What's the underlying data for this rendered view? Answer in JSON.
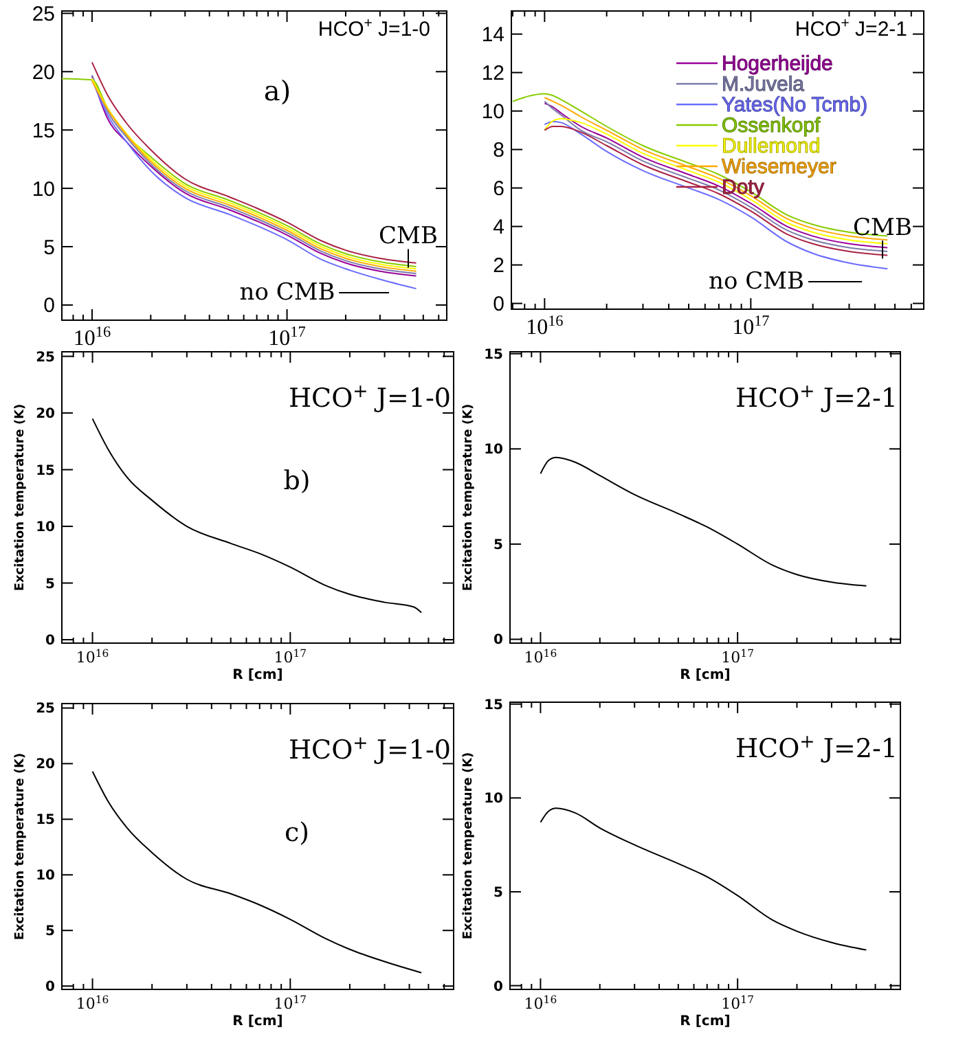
{
  "chart_data": [
    {
      "type": "line",
      "title": "HCO$^{+}$ J=1-0",
      "log": "x",
      "xlim": [
        7000000000000000.0,
        6.6e+17
      ],
      "ylim": [
        -1.3,
        25.2
      ],
      "yticks": [
        0,
        5,
        10,
        15,
        20,
        25
      ],
      "xticks": [
        {
          "value": 8000000000000000.0,
          "label": null
        },
        {
          "value": 9000000000000000.0,
          "label": null
        },
        {
          "value": 1e+16,
          "label": "10$^{16}$"
        },
        {
          "value": 2e+16,
          "label": null
        },
        {
          "value": 3e+16,
          "label": null
        },
        {
          "value": 4e+16,
          "label": null
        },
        {
          "value": 5e+16,
          "label": null
        },
        {
          "value": 6e+16,
          "label": null
        },
        {
          "value": 7e+16,
          "label": null
        },
        {
          "value": 8e+16,
          "label": null
        },
        {
          "value": 9e+16,
          "label": null
        },
        {
          "value": 1e+17,
          "label": "10$^{17}$"
        },
        {
          "value": 2e+17,
          "label": null
        },
        {
          "value": 3e+17,
          "label": null
        },
        {
          "value": 4e+17,
          "label": null
        },
        {
          "value": 5e+17,
          "label": null
        },
        {
          "value": 6e+17,
          "label": null
        }
      ],
      "x": [
        1e+16,
        1.2e+16,
        1.5e+16,
        2e+16,
        3e+16,
        5e+16,
        7e+16,
        1e+17,
        1.5e+17,
        2e+17,
        3e+17,
        4.6e+17
      ],
      "annotations": [
        "a)",
        "CMB",
        "no CMB"
      ],
      "series": [
        {
          "color": "#990099",
          "values": [
            19.6,
            16.0,
            14.0,
            11.9,
            9.6,
            8.2,
            7.2,
            6.0,
            4.4,
            3.6,
            2.9,
            2.5
          ]
        },
        {
          "color": "#7b7bab",
          "values": [
            19.7,
            16.6,
            14.4,
            12.1,
            9.8,
            8.4,
            7.4,
            6.2,
            4.6,
            3.8,
            3.1,
            2.7
          ]
        },
        {
          "color": "#6b6bff",
          "values": [
            19.3,
            16.3,
            14.0,
            11.5,
            9.2,
            7.8,
            6.8,
            5.6,
            3.9,
            3.1,
            2.2,
            1.4
          ]
        },
        {
          "color": "#88cc00",
          "x": [
            7000000000000000.0,
            1e+16,
            1.2e+16,
            1.5e+16,
            2e+16,
            3e+16,
            5e+16,
            7e+16,
            1e+17,
            1.5e+17,
            2e+17,
            3e+17,
            4.6e+17
          ],
          "values": [
            19.4,
            19.3,
            16.9,
            14.6,
            12.7,
            10.4,
            9.0,
            8.0,
            6.8,
            5.2,
            4.4,
            3.7,
            3.3
          ]
        },
        {
          "color": "#ffff00",
          "values": [
            19.4,
            16.9,
            14.7,
            12.5,
            10.2,
            8.8,
            7.8,
            6.6,
            5.0,
            4.2,
            3.5,
            3.1
          ]
        },
        {
          "color": "#ffaa00",
          "values": [
            19.2,
            16.8,
            14.6,
            12.3,
            10.0,
            8.6,
            7.6,
            6.4,
            4.8,
            4.0,
            3.3,
            2.9
          ]
        },
        {
          "color": "#aa2244",
          "values": [
            20.8,
            18.0,
            15.6,
            13.3,
            10.8,
            9.3,
            8.3,
            7.1,
            5.5,
            4.7,
            4.0,
            3.6
          ]
        }
      ]
    },
    {
      "type": "line",
      "title": "HCO$^{+}$ J=2-1",
      "log": "x",
      "legend": "top right",
      "xlim": [
        6900000000000000.0,
        6.9e+17
      ],
      "ylim": [
        -0.3,
        15.2
      ],
      "yticks": [
        0,
        2,
        4,
        6,
        8,
        10,
        12,
        14
      ],
      "xticks": [
        {
          "value": 7000000000000000.0,
          "label": null
        },
        {
          "value": 8000000000000000.0,
          "label": null
        },
        {
          "value": 9000000000000000.0,
          "label": null
        },
        {
          "value": 1e+16,
          "label": "10$^{16}$"
        },
        {
          "value": 2e+16,
          "label": null
        },
        {
          "value": 3e+16,
          "label": null
        },
        {
          "value": 4e+16,
          "label": null
        },
        {
          "value": 5e+16,
          "label": null
        },
        {
          "value": 6e+16,
          "label": null
        },
        {
          "value": 7e+16,
          "label": null
        },
        {
          "value": 8e+16,
          "label": null
        },
        {
          "value": 9e+16,
          "label": null
        },
        {
          "value": 1e+17,
          "label": "10$^{17}$"
        },
        {
          "value": 2e+17,
          "label": null
        },
        {
          "value": 3e+17,
          "label": null
        },
        {
          "value": 4e+17,
          "label": null
        },
        {
          "value": 5e+17,
          "label": null
        },
        {
          "value": 6e+17,
          "label": null
        }
      ],
      "x": [
        1e+16,
        1.1e+16,
        1.2e+16,
        1.5e+16,
        2e+16,
        3e+16,
        5e+16,
        7e+16,
        1e+17,
        1.5e+17,
        2e+17,
        3e+17,
        4.6e+17
      ],
      "annotations": [
        "CMB",
        "no CMB"
      ],
      "series": [
        {
          "name": "Hogerheijde",
          "color": "#990099",
          "values": [
            10.4,
            10.2,
            9.9,
            9.2,
            8.6,
            7.6,
            6.7,
            6.1,
            5.2,
            4.0,
            3.5,
            3.1,
            2.9
          ]
        },
        {
          "name": "M.Juvela",
          "color": "#7b7bab",
          "values": [
            10.5,
            10.1,
            9.8,
            9.0,
            8.4,
            7.4,
            6.5,
            5.9,
            5.0,
            3.8,
            3.3,
            2.9,
            2.7
          ]
        },
        {
          "name": "Yates(No Tcmb)",
          "color": "#6b6bff",
          "values": [
            9.3,
            9.45,
            9.4,
            8.8,
            7.9,
            6.9,
            6.0,
            5.4,
            4.5,
            3.2,
            2.6,
            2.1,
            1.8
          ]
        },
        {
          "name": "Ossenkopf",
          "color": "#88cc00",
          "x": [
            7000000000000000.0,
            1e+16,
            1.1e+16,
            1.2e+16,
            1.5e+16,
            2e+16,
            3e+16,
            5e+16,
            7e+16,
            1e+17,
            1.5e+17,
            2e+17,
            3e+17,
            4.6e+17
          ],
          "values": [
            10.5,
            10.9,
            10.8,
            10.6,
            10.0,
            9.2,
            8.2,
            7.3,
            6.7,
            5.8,
            4.6,
            4.1,
            3.7,
            3.5
          ]
        },
        {
          "name": "Dullemond",
          "color": "#ffff00",
          "values": [
            9.0,
            9.5,
            9.6,
            9.4,
            8.8,
            7.8,
            6.9,
            6.3,
            5.4,
            4.2,
            3.7,
            3.3,
            3.1
          ]
        },
        {
          "name": "Wiesemeyer",
          "color": "#ffaa00",
          "values": [
            10.7,
            10.5,
            10.3,
            9.7,
            9.0,
            8.0,
            7.1,
            6.5,
            5.6,
            4.4,
            3.9,
            3.5,
            3.3
          ]
        },
        {
          "name": "Doty",
          "color": "#aa2244",
          "values": [
            9.0,
            9.2,
            9.2,
            8.9,
            8.2,
            7.2,
            6.3,
            5.7,
            4.8,
            3.6,
            3.1,
            2.7,
            2.5
          ]
        }
      ]
    },
    {
      "type": "line",
      "title": "HCO$^{+}$ J=1-0",
      "xlabel": "R [cm]",
      "ylabel": "Excitation temperature (K)",
      "log": "x",
      "xlim": [
        7000000000000000.0,
        6.7e+17
      ],
      "ylim": [
        -0.3,
        25.4
      ],
      "yticks": [
        0,
        5,
        10,
        15,
        20,
        25
      ],
      "xticks": [
        {
          "value": 8000000000000000.0,
          "label": null
        },
        {
          "value": 9000000000000000.0,
          "label": null
        },
        {
          "value": 1e+16,
          "label": "10$^{16}$"
        },
        {
          "value": 2e+16,
          "label": null
        },
        {
          "value": 3e+16,
          "label": null
        },
        {
          "value": 4e+16,
          "label": null
        },
        {
          "value": 5e+16,
          "label": null
        },
        {
          "value": 6e+16,
          "label": null
        },
        {
          "value": 7e+16,
          "label": null
        },
        {
          "value": 8e+16,
          "label": null
        },
        {
          "value": 9e+16,
          "label": null
        },
        {
          "value": 1e+17,
          "label": "10$^{17}$"
        },
        {
          "value": 2e+17,
          "label": null
        },
        {
          "value": 3e+17,
          "label": null
        },
        {
          "value": 4e+17,
          "label": null
        },
        {
          "value": 5e+17,
          "label": null
        },
        {
          "value": 6e+17,
          "label": null
        }
      ],
      "annotations": [
        "b)"
      ],
      "x": [
        1e+16,
        1.2e+16,
        1.5e+16,
        2e+16,
        3e+16,
        5e+16,
        7e+16,
        1e+17,
        1.5e+17,
        2e+17,
        3e+17,
        4.2e+17,
        4.6e+17
      ],
      "color": "#000000",
      "values": [
        19.5,
        16.8,
        14.3,
        12.3,
        10.0,
        8.5,
        7.6,
        6.4,
        4.8,
        4.0,
        3.3,
        2.9,
        2.4
      ]
    },
    {
      "type": "line",
      "title": "HCO$^{+}$ J=2-1",
      "xlabel": "R [cm]",
      "ylabel": "Excitation temperature (K)",
      "log": "x",
      "xlim": [
        7000000000000000.0,
        6.7e+17
      ],
      "ylim": [
        -0.2,
        15.1
      ],
      "yticks": [
        0,
        5,
        10,
        15
      ],
      "xticks": [
        {
          "value": 8000000000000000.0,
          "label": null
        },
        {
          "value": 9000000000000000.0,
          "label": null
        },
        {
          "value": 1e+16,
          "label": "10$^{16}$"
        },
        {
          "value": 2e+16,
          "label": null
        },
        {
          "value": 3e+16,
          "label": null
        },
        {
          "value": 4e+16,
          "label": null
        },
        {
          "value": 5e+16,
          "label": null
        },
        {
          "value": 6e+16,
          "label": null
        },
        {
          "value": 7e+16,
          "label": null
        },
        {
          "value": 8e+16,
          "label": null
        },
        {
          "value": 9e+16,
          "label": null
        },
        {
          "value": 1e+17,
          "label": "10$^{17}$"
        },
        {
          "value": 2e+17,
          "label": null
        },
        {
          "value": 3e+17,
          "label": null
        },
        {
          "value": 4e+17,
          "label": null
        },
        {
          "value": 5e+17,
          "label": null
        },
        {
          "value": 6e+17,
          "label": null
        }
      ],
      "x": [
        1e+16,
        1.1e+16,
        1.2e+16,
        1.5e+16,
        2e+16,
        3e+16,
        5e+16,
        7e+16,
        1e+17,
        1.5e+17,
        2e+17,
        3e+17,
        4.5e+17
      ],
      "color": "#000000",
      "values": [
        8.7,
        9.4,
        9.55,
        9.3,
        8.6,
        7.6,
        6.6,
        5.9,
        5.0,
        3.9,
        3.4,
        3.0,
        2.8
      ]
    },
    {
      "type": "line",
      "title": "HCO$^{+}$ J=1-0",
      "xlabel": "R [cm]",
      "ylabel": "Excitation temperature (K)",
      "log": "x",
      "xlim": [
        7000000000000000.0,
        6.7e+17
      ],
      "ylim": [
        -0.3,
        25.4
      ],
      "yticks": [
        0,
        5,
        10,
        15,
        20,
        25
      ],
      "xticks": [
        {
          "value": 8000000000000000.0,
          "label": null
        },
        {
          "value": 9000000000000000.0,
          "label": null
        },
        {
          "value": 1e+16,
          "label": "10$^{16}$"
        },
        {
          "value": 2e+16,
          "label": null
        },
        {
          "value": 3e+16,
          "label": null
        },
        {
          "value": 4e+16,
          "label": null
        },
        {
          "value": 5e+16,
          "label": null
        },
        {
          "value": 6e+16,
          "label": null
        },
        {
          "value": 7e+16,
          "label": null
        },
        {
          "value": 8e+16,
          "label": null
        },
        {
          "value": 9e+16,
          "label": null
        },
        {
          "value": 1e+17,
          "label": "10$^{17}$"
        },
        {
          "value": 2e+17,
          "label": null
        },
        {
          "value": 3e+17,
          "label": null
        },
        {
          "value": 4e+17,
          "label": null
        },
        {
          "value": 5e+17,
          "label": null
        },
        {
          "value": 6e+17,
          "label": null
        }
      ],
      "annotations": [
        "c)"
      ],
      "x": [
        1e+16,
        1.2e+16,
        1.5e+16,
        2e+16,
        3e+16,
        5e+16,
        7e+16,
        1e+17,
        1.5e+17,
        2e+17,
        3e+17,
        4.6e+17
      ],
      "color": "#000000",
      "values": [
        19.3,
        16.6,
        14.2,
        12.0,
        9.6,
        8.3,
        7.3,
        6.0,
        4.3,
        3.3,
        2.2,
        1.2
      ]
    },
    {
      "type": "line",
      "title": "HCO$^{+}$ J=2-1",
      "xlabel": "R [cm]",
      "ylabel": "Excitation temperature (K)",
      "log": "x",
      "xlim": [
        7000000000000000.0,
        6.7e+17
      ],
      "ylim": [
        -0.2,
        15.1
      ],
      "yticks": [
        0,
        5,
        10,
        15
      ],
      "xticks": [
        {
          "value": 8000000000000000.0,
          "label": null
        },
        {
          "value": 9000000000000000.0,
          "label": null
        },
        {
          "value": 1e+16,
          "label": "10$^{16}$"
        },
        {
          "value": 2e+16,
          "label": null
        },
        {
          "value": 3e+16,
          "label": null
        },
        {
          "value": 4e+16,
          "label": null
        },
        {
          "value": 5e+16,
          "label": null
        },
        {
          "value": 6e+16,
          "label": null
        },
        {
          "value": 7e+16,
          "label": null
        },
        {
          "value": 8e+16,
          "label": null
        },
        {
          "value": 9e+16,
          "label": null
        },
        {
          "value": 1e+17,
          "label": "10$^{17}$"
        },
        {
          "value": 2e+17,
          "label": null
        },
        {
          "value": 3e+17,
          "label": null
        },
        {
          "value": 4e+17,
          "label": null
        },
        {
          "value": 5e+17,
          "label": null
        },
        {
          "value": 6e+17,
          "label": null
        }
      ],
      "x": [
        1e+16,
        1.1e+16,
        1.2e+16,
        1.5e+16,
        2e+16,
        3e+16,
        5e+16,
        7e+16,
        1e+17,
        1.5e+17,
        2e+17,
        3e+17,
        4.5e+17
      ],
      "color": "#000000",
      "values": [
        8.7,
        9.3,
        9.45,
        9.2,
        8.4,
        7.5,
        6.5,
        5.8,
        4.8,
        3.5,
        2.9,
        2.3,
        1.9
      ]
    }
  ]
}
